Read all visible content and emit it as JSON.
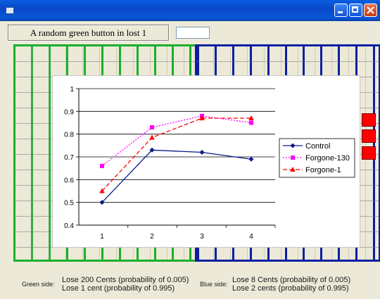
{
  "window": {
    "title": ""
  },
  "header": {
    "label": "A random green button in lost 1",
    "input_value": ""
  },
  "panels": {
    "green_color": "#19b02a",
    "blue_color": "#0a1fa0",
    "red_cells": [
      "selected",
      "selected",
      "selected"
    ]
  },
  "chart_data": {
    "type": "line",
    "title": "",
    "xlabel": "",
    "ylabel": "",
    "x": [
      1,
      2,
      3,
      4
    ],
    "ylim": [
      0.4,
      1
    ],
    "yticks": [
      "1",
      "0.9",
      "0.8",
      "0.7",
      "0.6",
      "0.5",
      "0.4"
    ],
    "xticks": [
      "1",
      "2",
      "3",
      "4"
    ],
    "grid": true,
    "legend_position": "right",
    "series": [
      {
        "name": "Control",
        "values": [
          0.5,
          0.73,
          0.72,
          0.69
        ],
        "color": "#0a1a8c",
        "marker": "diamond",
        "dash": "solid"
      },
      {
        "name": "Forgone-130",
        "values": [
          0.66,
          0.83,
          0.88,
          0.85
        ],
        "color": "#ff00ff",
        "marker": "square",
        "dash": "dotted"
      },
      {
        "name": "Forgone-1",
        "values": [
          0.55,
          0.785,
          0.87,
          0.87
        ],
        "color": "#ff0000",
        "marker": "triangle",
        "dash": "dashed"
      }
    ]
  },
  "footer": {
    "green_label": "Green side:",
    "green_line1": "Lose 200 Cents (probability of  0.005)",
    "green_line2": "Lose 1 cent (probability of 0.995)",
    "blue_label": "Blue side:",
    "blue_line1": "Lose 8 Cents (probability of  0.005)",
    "blue_line2": "Lose 2 cents (probability of 0.995)"
  }
}
